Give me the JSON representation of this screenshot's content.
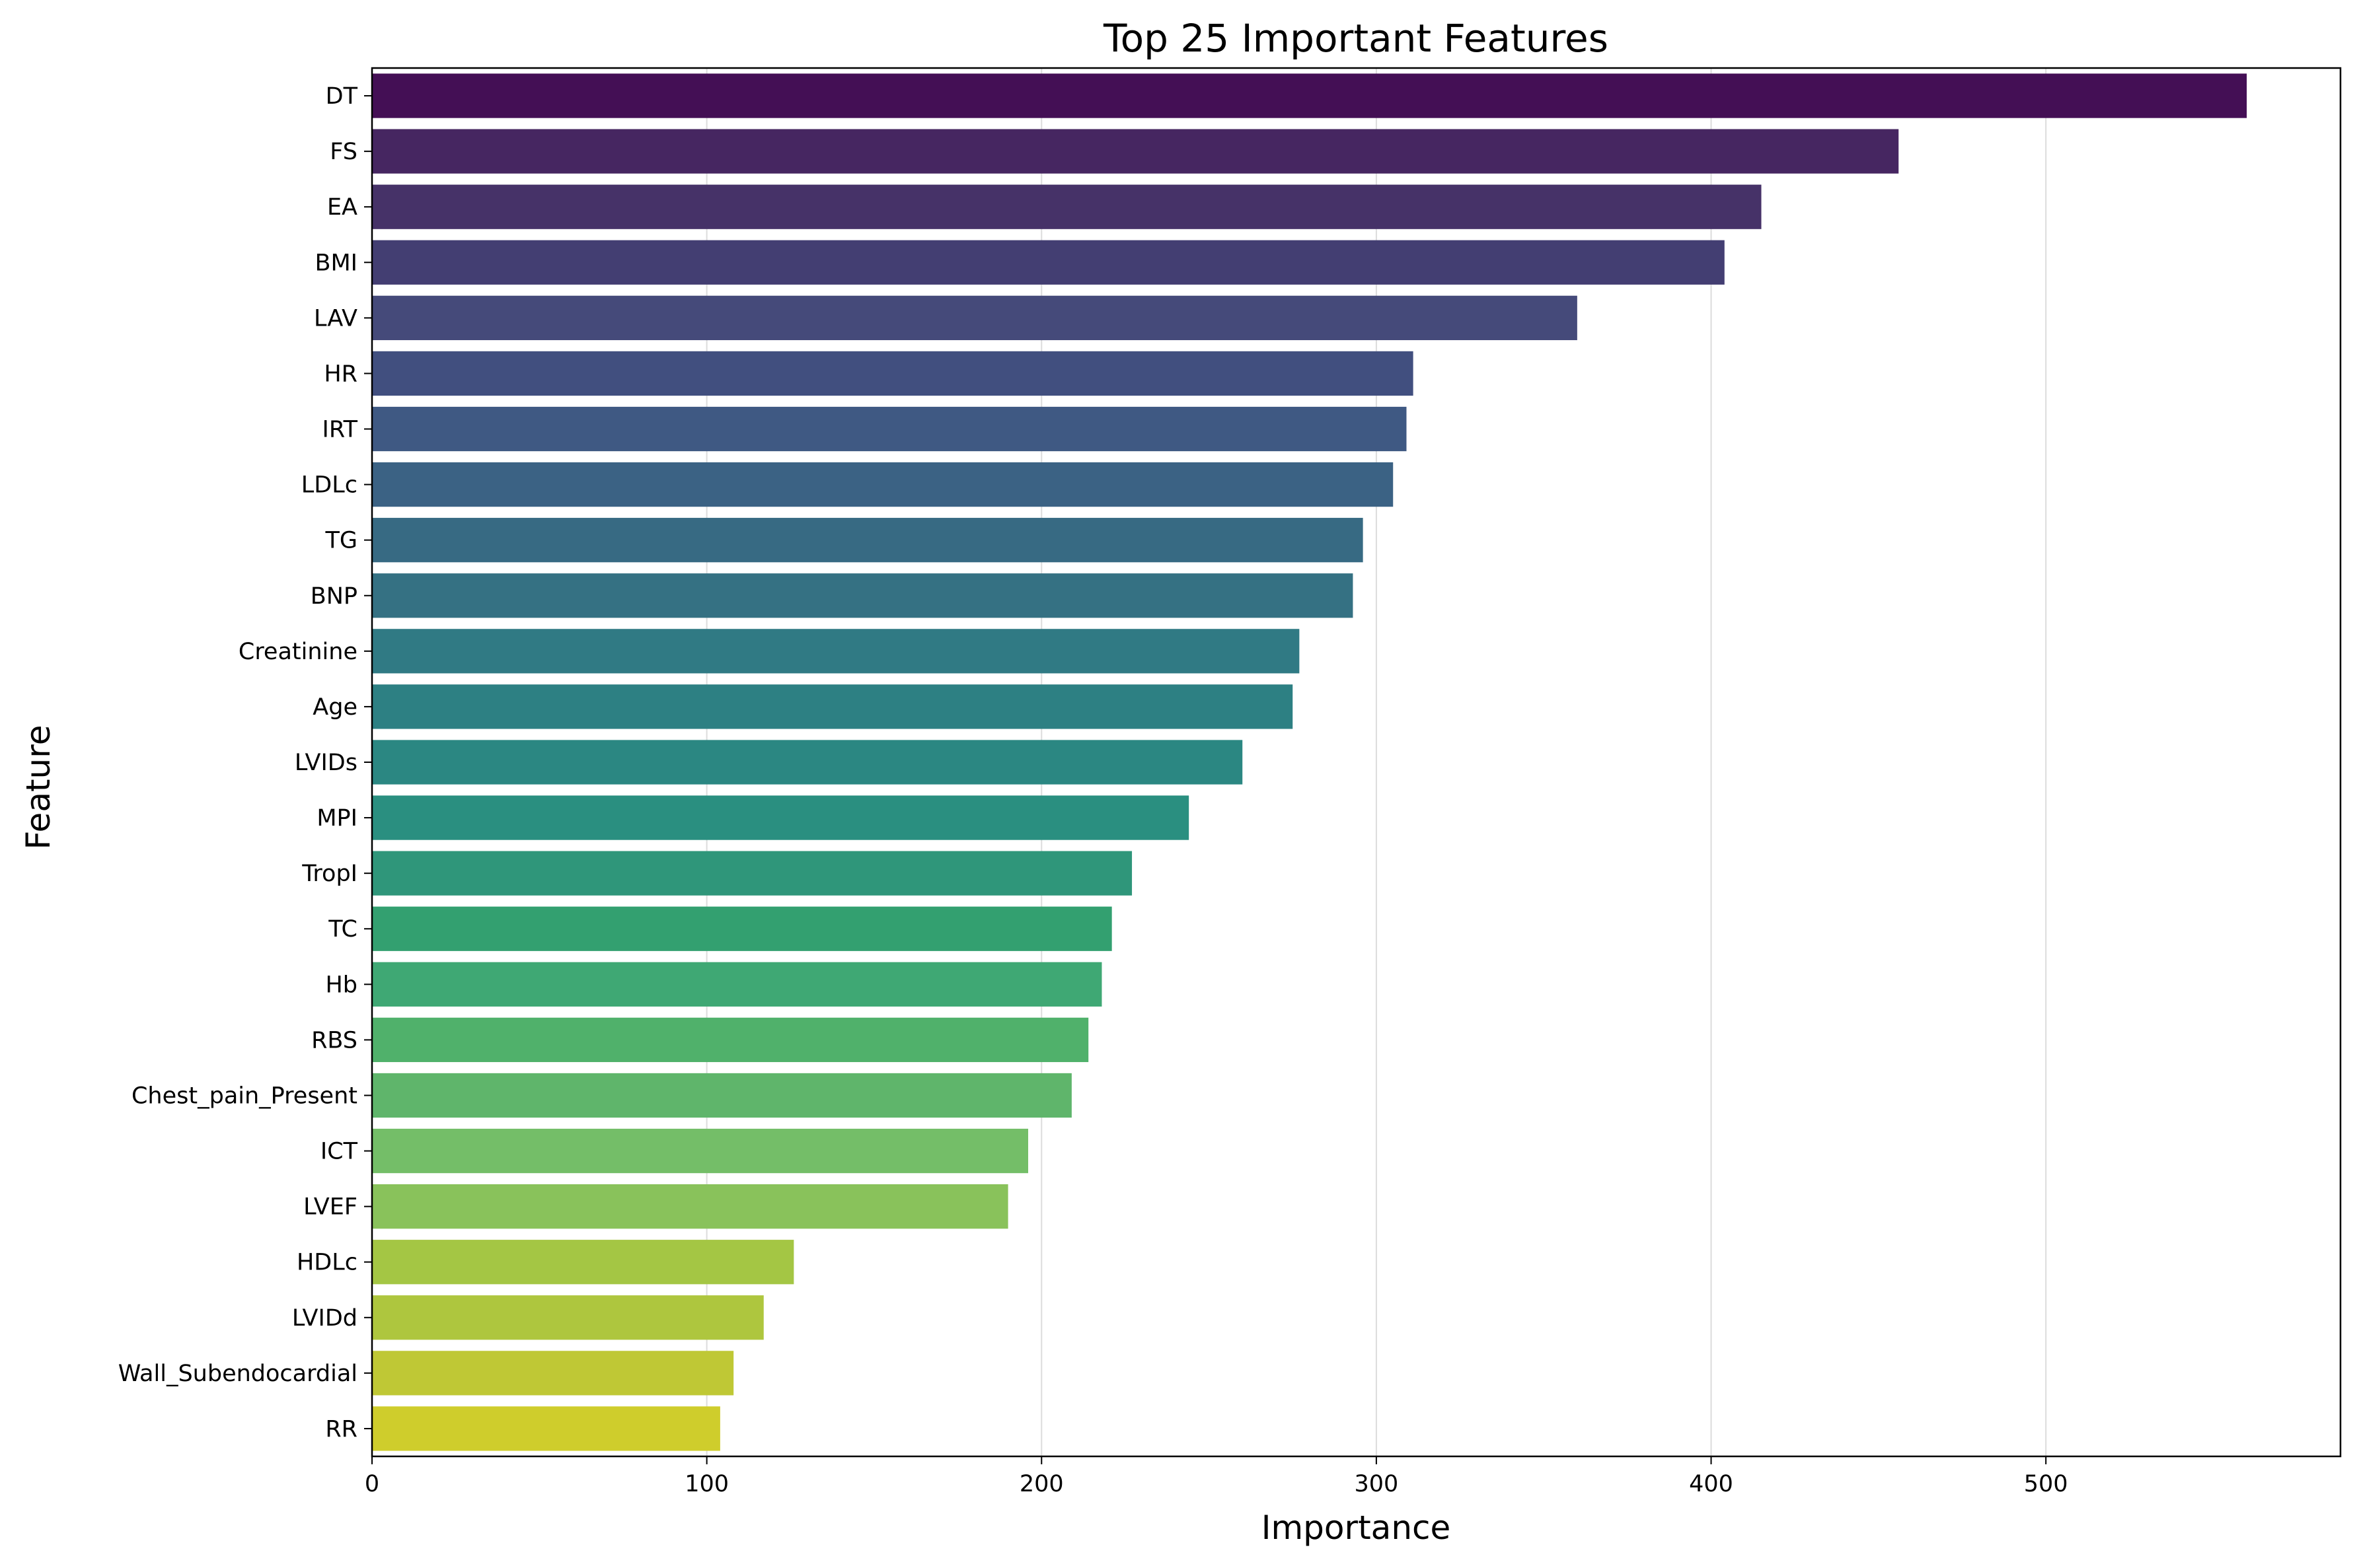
{
  "chart_data": {
    "type": "bar",
    "orientation": "horizontal",
    "title": "Top 25 Important Features",
    "xlabel": "Importance",
    "ylabel": "Feature",
    "xlim": [
      0,
      588
    ],
    "xticks": [
      0,
      100,
      200,
      300,
      400,
      500
    ],
    "grid": "x",
    "colormap": "viridis",
    "categories": [
      "DT",
      "FS",
      "EA",
      "BMI",
      "LAV",
      "HR",
      "IRT",
      "LDLc",
      "TG",
      "BNP",
      "Creatinine",
      "Age",
      "LVIDs",
      "MPI",
      "TropI",
      "TC",
      "Hb",
      "RBS",
      "Chest_pain_Present",
      "ICT",
      "LVEF",
      "HDLc",
      "LVIDd",
      "Wall_Subendocardial",
      "RR"
    ],
    "values": [
      560,
      456,
      415,
      404,
      360,
      311,
      309,
      305,
      296,
      293,
      277,
      275,
      260,
      244,
      227,
      221,
      218,
      214,
      209,
      196,
      190,
      126,
      117,
      108,
      104
    ],
    "colors": [
      "#440f55",
      "#462661",
      "#463268",
      "#433e72",
      "#454a7a",
      "#414f7f",
      "#3f5983",
      "#3b6284",
      "#376a83",
      "#357183",
      "#307a84",
      "#2d8083",
      "#2b8782",
      "#2a8f80",
      "#2f967a",
      "#33a070",
      "#3fa874",
      "#50b16b",
      "#5fb56b",
      "#74be68",
      "#89c25b",
      "#a4c644",
      "#aec63e",
      "#bfc835",
      "#cfcd2c"
    ]
  }
}
